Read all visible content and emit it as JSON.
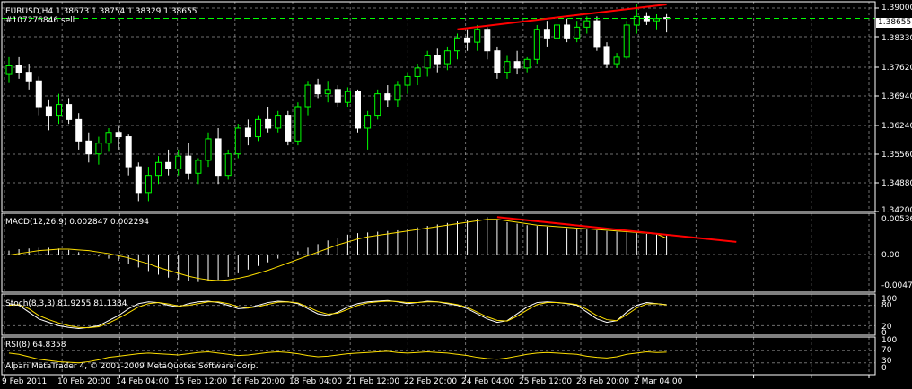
{
  "colors": {
    "bg": "#000000",
    "grid": "#c8c8c8",
    "frame": "#ffffff",
    "bull": "#00ff00",
    "bear": "#ffffff",
    "signal": "#ffe000",
    "trend": "#ff0000",
    "hist": "#ffffff"
  },
  "main": {
    "header": "EURUSD,H4  1.38673 1.38754 1.38329 1.38655",
    "order": "#107276846 sell",
    "last_price": "1.38655",
    "price_labels": [
      "1.39000",
      "1.38330",
      "1.37620",
      "1.36940",
      "1.36240",
      "1.35560",
      "1.34880",
      "1.34200"
    ],
    "candles": [
      [
        1.3735,
        1.3775,
        1.3715,
        1.3755
      ],
      [
        1.3755,
        1.3775,
        1.3725,
        1.374
      ],
      [
        1.374,
        1.376,
        1.37,
        1.372
      ],
      [
        1.372,
        1.373,
        1.364,
        1.366
      ],
      [
        1.366,
        1.3675,
        1.3605,
        1.364
      ],
      [
        1.364,
        1.369,
        1.362,
        1.3665
      ],
      [
        1.3665,
        1.368,
        1.362,
        1.363
      ],
      [
        1.363,
        1.3645,
        1.356,
        1.358
      ],
      [
        1.358,
        1.36,
        1.353,
        1.355
      ],
      [
        1.355,
        1.359,
        1.3525,
        1.3575
      ],
      [
        1.3575,
        1.361,
        1.3555,
        1.36
      ],
      [
        1.36,
        1.3615,
        1.356,
        1.359
      ],
      [
        1.359,
        1.3595,
        1.35,
        1.352
      ],
      [
        1.352,
        1.353,
        1.344,
        1.346
      ],
      [
        1.346,
        1.352,
        1.344,
        1.35
      ],
      [
        1.35,
        1.3545,
        1.348,
        1.353
      ],
      [
        1.353,
        1.356,
        1.35,
        1.3515
      ],
      [
        1.3515,
        1.356,
        1.35,
        1.3545
      ],
      [
        1.3545,
        1.3575,
        1.349,
        1.3505
      ],
      [
        1.3505,
        1.354,
        1.348,
        1.3535
      ],
      [
        1.3535,
        1.36,
        1.352,
        1.3585
      ],
      [
        1.3585,
        1.361,
        1.348,
        1.35
      ],
      [
        1.35,
        1.356,
        1.349,
        1.355
      ],
      [
        1.355,
        1.362,
        1.354,
        1.361
      ],
      [
        1.361,
        1.363,
        1.357,
        1.359
      ],
      [
        1.359,
        1.364,
        1.358,
        1.363
      ],
      [
        1.363,
        1.366,
        1.36,
        1.361
      ],
      [
        1.361,
        1.365,
        1.36,
        1.364
      ],
      [
        1.364,
        1.365,
        1.357,
        1.358
      ],
      [
        1.358,
        1.367,
        1.357,
        1.366
      ],
      [
        1.366,
        1.372,
        1.364,
        1.371
      ],
      [
        1.371,
        1.3725,
        1.368,
        1.369
      ],
      [
        1.369,
        1.372,
        1.367,
        1.37
      ],
      [
        1.37,
        1.371,
        1.366,
        1.367
      ],
      [
        1.367,
        1.3705,
        1.366,
        1.3695
      ],
      [
        1.3695,
        1.37,
        1.36,
        1.361
      ],
      [
        1.361,
        1.365,
        1.356,
        1.364
      ],
      [
        1.364,
        1.37,
        1.363,
        1.369
      ],
      [
        1.369,
        1.371,
        1.366,
        1.3675
      ],
      [
        1.3675,
        1.372,
        1.366,
        1.371
      ],
      [
        1.371,
        1.374,
        1.369,
        1.373
      ],
      [
        1.373,
        1.376,
        1.371,
        1.375
      ],
      [
        1.375,
        1.379,
        1.373,
        1.378
      ],
      [
        1.378,
        1.3795,
        1.374,
        1.376
      ],
      [
        1.376,
        1.38,
        1.3745,
        1.379
      ],
      [
        1.379,
        1.383,
        1.377,
        1.382
      ],
      [
        1.382,
        1.384,
        1.379,
        1.381
      ],
      [
        1.381,
        1.385,
        1.379,
        1.384
      ],
      [
        1.384,
        1.3845,
        1.377,
        1.379
      ],
      [
        1.379,
        1.38,
        1.3725,
        1.374
      ],
      [
        1.374,
        1.378,
        1.3725,
        1.3765
      ],
      [
        1.3765,
        1.379,
        1.3735,
        1.375
      ],
      [
        1.375,
        1.3775,
        1.374,
        1.377
      ],
      [
        1.377,
        1.385,
        1.376,
        1.384
      ],
      [
        1.384,
        1.386,
        1.38,
        1.382
      ],
      [
        1.382,
        1.386,
        1.38,
        1.385
      ],
      [
        1.385,
        1.3865,
        1.381,
        1.382
      ],
      [
        1.382,
        1.386,
        1.381,
        1.3845
      ],
      [
        1.3845,
        1.387,
        1.383,
        1.386
      ],
      [
        1.386,
        1.387,
        1.379,
        1.38
      ],
      [
        1.38,
        1.381,
        1.375,
        1.376
      ],
      [
        1.376,
        1.3785,
        1.375,
        1.3775
      ],
      [
        1.3775,
        1.386,
        1.377,
        1.385
      ],
      [
        1.385,
        1.39,
        1.383,
        1.387
      ],
      [
        1.387,
        1.388,
        1.385,
        1.386
      ],
      [
        1.386,
        1.3875,
        1.384,
        1.3865
      ],
      [
        1.38673,
        1.38754,
        1.38329,
        1.38655
      ]
    ],
    "resistance_line": {
      "from": [
        45,
        1.384
      ],
      "to": [
        66,
        1.3898
      ]
    }
  },
  "macd": {
    "label": "MACD(12,26,9) 0.002847 0.002294",
    "axis_labels": [
      "0.00536",
      "0.00",
      "-0.00473"
    ],
    "histogram": [
      0.0006,
      0.0008,
      0.0009,
      0.001,
      0.001,
      0.0009,
      0.0007,
      0.0004,
      0.0001,
      -0.0002,
      -0.0005,
      -0.0008,
      -0.0012,
      -0.0017,
      -0.0022,
      -0.0027,
      -0.0031,
      -0.0034,
      -0.0036,
      -0.0037,
      -0.0036,
      -0.0034,
      -0.003,
      -0.0025,
      -0.002,
      -0.0015,
      -0.001,
      -0.0005,
      0.0,
      0.0005,
      0.001,
      0.0015,
      0.002,
      0.0024,
      0.0028,
      0.003,
      0.0031,
      0.0032,
      0.0033,
      0.0034,
      0.0036,
      0.0038,
      0.004,
      0.0042,
      0.0044,
      0.0046,
      0.0048,
      0.005,
      0.0052,
      0.0048,
      0.0045,
      0.0043,
      0.0041,
      0.004,
      0.0039,
      0.0038,
      0.0037,
      0.0036,
      0.0035,
      0.0034,
      0.0033,
      0.0032,
      0.0031,
      0.003,
      0.0029,
      0.0028,
      0.0028
    ],
    "signal": [
      0.0,
      0.0002,
      0.0004,
      0.0006,
      0.0007,
      0.0008,
      0.0008,
      0.0007,
      0.0006,
      0.0004,
      0.0002,
      -0.0001,
      -0.0004,
      -0.0008,
      -0.0012,
      -0.0017,
      -0.0021,
      -0.0025,
      -0.0029,
      -0.0032,
      -0.0034,
      -0.0035,
      -0.0034,
      -0.0032,
      -0.0029,
      -0.0025,
      -0.0021,
      -0.0016,
      -0.0011,
      -0.0006,
      -0.0001,
      0.0004,
      0.0009,
      0.0014,
      0.0018,
      0.0022,
      0.0025,
      0.0027,
      0.0029,
      0.0031,
      0.0033,
      0.0035,
      0.0037,
      0.0039,
      0.0041,
      0.0043,
      0.0045,
      0.0047,
      0.0049,
      0.0049,
      0.0047,
      0.0045,
      0.0043,
      0.0041,
      0.004,
      0.0039,
      0.0038,
      0.0037,
      0.0036,
      0.0035,
      0.0034,
      0.0033,
      0.0032,
      0.0031,
      0.003,
      0.0029,
      0.0023
    ],
    "trend_line": {
      "from": [
        49,
        0.0052
      ],
      "to": [
        73,
        0.0018
      ]
    }
  },
  "stoch": {
    "label": "Stoch(8,3,3) 81.9255 81.1384",
    "axis_labels": [
      "100",
      "80",
      "20",
      "0"
    ],
    "main": [
      85,
      80,
      60,
      40,
      30,
      20,
      15,
      12,
      15,
      20,
      35,
      50,
      70,
      85,
      90,
      88,
      80,
      75,
      85,
      90,
      92,
      88,
      80,
      70,
      72,
      80,
      88,
      92,
      90,
      85,
      70,
      55,
      50,
      60,
      75,
      85,
      90,
      92,
      94,
      90,
      85,
      88,
      92,
      90,
      85,
      80,
      70,
      55,
      40,
      30,
      35,
      55,
      75,
      88,
      90,
      88,
      85,
      80,
      60,
      40,
      30,
      35,
      60,
      80,
      88,
      85,
      82
    ],
    "signal": [
      80,
      82,
      70,
      50,
      38,
      28,
      20,
      15,
      14,
      17,
      28,
      42,
      58,
      75,
      85,
      88,
      84,
      78,
      80,
      85,
      90,
      90,
      85,
      76,
      72,
      76,
      83,
      89,
      90,
      87,
      75,
      62,
      54,
      57,
      68,
      80,
      87,
      90,
      92,
      91,
      88,
      88,
      90,
      90,
      87,
      82,
      74,
      60,
      46,
      36,
      34,
      48,
      66,
      82,
      88,
      88,
      86,
      82,
      68,
      50,
      38,
      35,
      52,
      72,
      84,
      85,
      81
    ]
  },
  "rsi": {
    "label": "RSI(8) 64.8358",
    "axis_labels": [
      "100",
      "70",
      "30",
      "0"
    ],
    "values": [
      62,
      58,
      50,
      42,
      38,
      34,
      32,
      30,
      34,
      40,
      48,
      52,
      56,
      60,
      62,
      60,
      58,
      56,
      60,
      64,
      66,
      62,
      58,
      54,
      56,
      60,
      64,
      66,
      64,
      60,
      54,
      50,
      52,
      56,
      60,
      62,
      64,
      66,
      68,
      64,
      62,
      64,
      66,
      64,
      62,
      58,
      54,
      48,
      44,
      42,
      46,
      52,
      58,
      62,
      64,
      62,
      60,
      58,
      52,
      48,
      46,
      50,
      58,
      62,
      66,
      64,
      65
    ]
  },
  "copyright": "Alpari MetaTrader 4, © 2001-2009 MetaQuotes Software Corp.",
  "time_labels": [
    "9 Feb 2011",
    "10 Feb 20:00",
    "14 Feb 04:00",
    "15 Feb 12:00",
    "16 Feb 20:00",
    "18 Feb 04:00",
    "21 Feb 12:00",
    "22 Feb 20:00",
    "24 Feb 04:00",
    "25 Feb 12:00",
    "28 Feb 20:00",
    "2 Mar 04:00"
  ]
}
